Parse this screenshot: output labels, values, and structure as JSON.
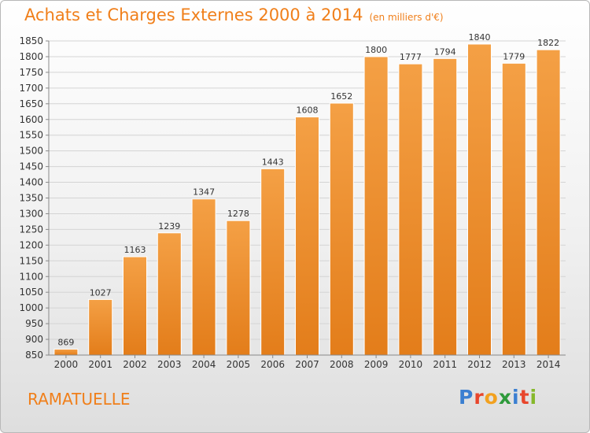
{
  "title": "Achats et Charges Externes 2000 à 2014",
  "title_unit": "(en milliers d'€)",
  "commune": "RAMATUELLE",
  "brand": {
    "letters": [
      "P",
      "r",
      "o",
      "x",
      "i",
      "t",
      "i"
    ],
    "colors": [
      "#3b7fd1",
      "#e8462c",
      "#f2a11f",
      "#2e9a3b",
      "#3b7fd1",
      "#e8462c",
      "#86b82b"
    ]
  },
  "colors": {
    "bar": "#f4a045",
    "bar_dark": "#e37d1a",
    "accent": "#f07f1a"
  },
  "chart_data": {
    "type": "bar",
    "title": "Achats et Charges Externes 2000 à 2014",
    "categories": [
      "2000",
      "2001",
      "2002",
      "2003",
      "2004",
      "2005",
      "2006",
      "2007",
      "2008",
      "2009",
      "2010",
      "2011",
      "2012",
      "2013",
      "2014"
    ],
    "values": [
      869,
      1027,
      1163,
      1239,
      1347,
      1278,
      1443,
      1608,
      1652,
      1800,
      1777,
      1794,
      1840,
      1779,
      1822
    ],
    "ylim": [
      850,
      1850
    ],
    "yticks": [
      850,
      900,
      950,
      1000,
      1050,
      1100,
      1150,
      1200,
      1250,
      1300,
      1350,
      1400,
      1450,
      1500,
      1550,
      1600,
      1650,
      1700,
      1750,
      1800,
      1850
    ],
    "grid": true,
    "xlabel": "",
    "ylabel": ""
  }
}
